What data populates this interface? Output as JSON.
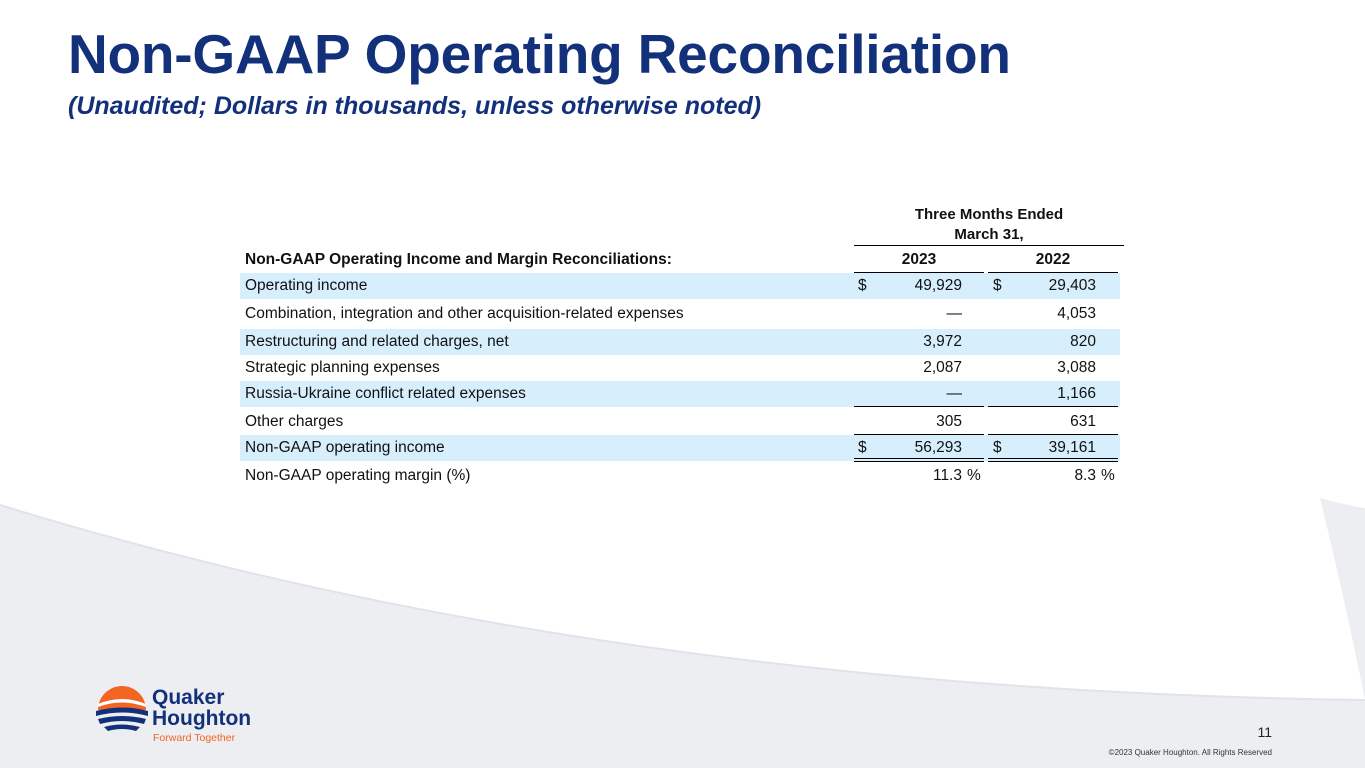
{
  "slide": {
    "title": "Non-GAAP Operating Reconciliation",
    "subtitle": "(Unaudited; Dollars in thousands, unless otherwise noted)",
    "page_number": "11",
    "copyright": "©2023 Quaker Houghton. All Rights Reserved"
  },
  "table": {
    "period_header": [
      "Three Months Ended",
      "March 31,"
    ],
    "section_label": "Non-GAAP Operating Income and Margin Reconciliations:",
    "years": [
      "2023",
      "2022"
    ],
    "rows": [
      {
        "label": "Operating income",
        "c1": "$",
        "v1": "49,929",
        "c2": "$",
        "v2": "29,403"
      },
      {
        "label": "Combination, integration and other acquisition-related expenses",
        "v1": "—",
        "v2": "4,053"
      },
      {
        "label": "Restructuring and related charges, net",
        "v1": "3,972",
        "v2": "820"
      },
      {
        "label": "Strategic planning expenses",
        "v1": "2,087",
        "v2": "3,088"
      },
      {
        "label": "Russia-Ukraine conflict related expenses",
        "v1": "—",
        "v2": "1,166"
      },
      {
        "label": "Other charges",
        "v1": "305",
        "v2": "631"
      },
      {
        "label": "Non-GAAP operating income",
        "c1": "$",
        "v1": "56,293",
        "c2": "$",
        "v2": "39,161"
      },
      {
        "label": "Non-GAAP operating margin (%)",
        "v1": "11.3",
        "p1": "%",
        "v2": "8.3",
        "p2": "%"
      }
    ]
  },
  "logo": {
    "line1": "Quaker",
    "line2": "Houghton",
    "tagline": "Forward Together",
    "brand_color": "#13317a",
    "accent_color": "#f26522"
  },
  "colors": {
    "title": "#13317a",
    "row_shade": "#d7eefc",
    "wave": "#e8ebf0"
  }
}
